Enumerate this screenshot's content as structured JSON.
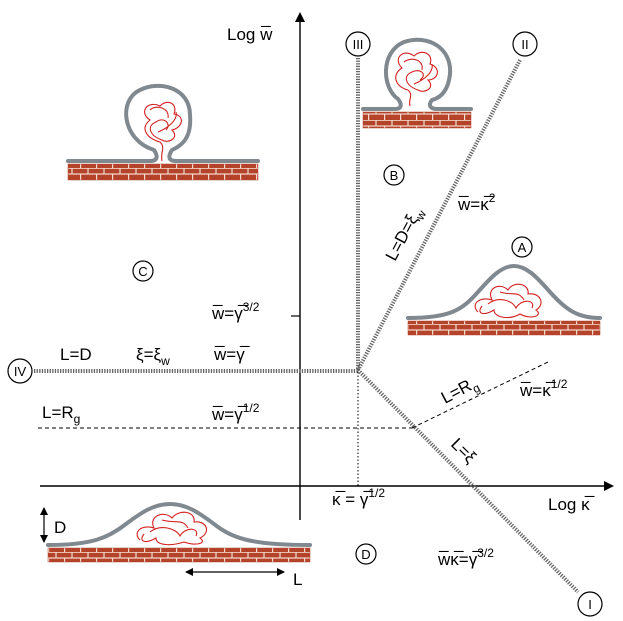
{
  "axes": {
    "y_label": "Log w̅",
    "x_label": "Log κ̅"
  },
  "region_markers": {
    "I": "I",
    "II": "II",
    "III": "III",
    "IV": "IV",
    "A": "A",
    "B": "B",
    "C": "C",
    "D": "D"
  },
  "labels": {
    "l_eq_d": "L=D",
    "xi_eq_xi_w": "ξ=ξ",
    "xi_eq_xi_w_sub": "w",
    "w_eq_gamma": "w̅=γ̅",
    "w_eq_gamma32": "w̅=γ̅",
    "w_eq_gamma32_sup": "3/2",
    "w_eq_gamma12": "w̅=γ̅",
    "w_eq_gamma12_sup": "1/2",
    "l_eq_rg_left": "L=R",
    "l_eq_rg_left_sub": "g",
    "l_eq_d_eq_xiw": "L=D=ξ",
    "l_eq_d_eq_xiw_sub": "w",
    "w_eq_kappa2": "w̅=κ̅",
    "w_eq_kappa2_sup": "2",
    "l_eq_rg_right": "L=R",
    "l_eq_rg_right_sub": "g",
    "w_eq_kappa12": "w̅=κ̅",
    "w_eq_kappa12_sup": "1/2",
    "l_eq_xi": "L=ξ",
    "kappa_eq_gamma12": "κ̅ = γ̅",
    "kappa_eq_gamma12_sup": "1/2",
    "wk_eq_gamma32": "w̅κ̅=γ̅",
    "wk_eq_gamma32_sup": "3/2",
    "dim_d": "D",
    "dim_l": "L"
  },
  "colors": {
    "polymer": "#d42020",
    "brick": "#b5432a",
    "mortar": "#f2dcd0",
    "membrane": "#808890",
    "lines": "#555555"
  }
}
